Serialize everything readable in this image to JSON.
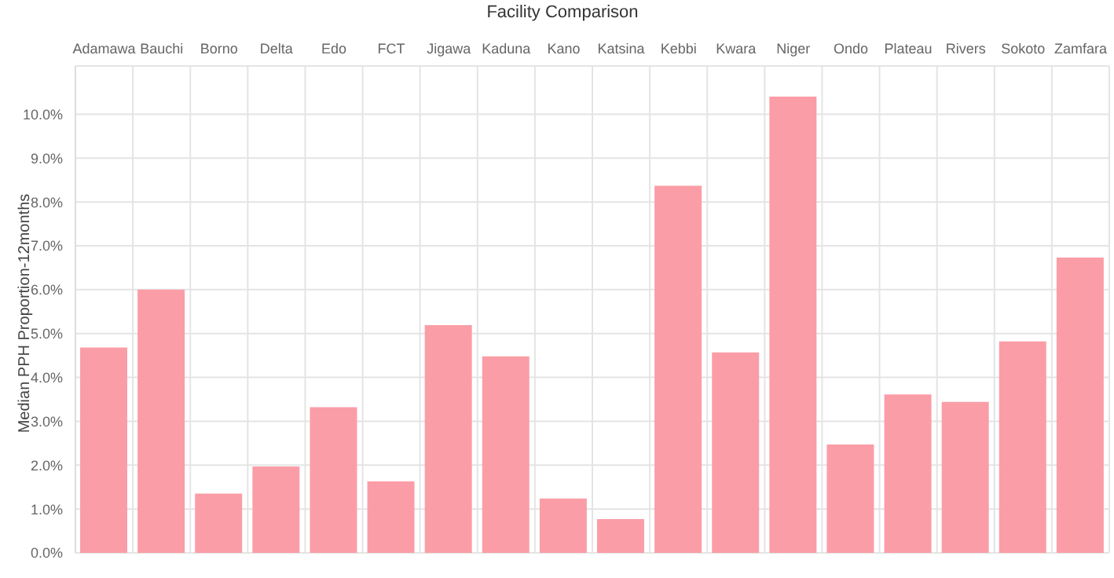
{
  "chart_data": {
    "type": "bar",
    "title": "Facility Comparison",
    "ylabel": "Median PPH Proportion-12months",
    "categories": [
      "Adamawa",
      "Bauchi",
      "Borno",
      "Delta",
      "Edo",
      "FCT",
      "Jigawa",
      "Kaduna",
      "Kano",
      "Katsina",
      "Kebbi",
      "Kwara",
      "Niger",
      "Ondo",
      "Plateau",
      "Rivers",
      "Sokoto",
      "Zamfara"
    ],
    "values": [
      4.68,
      6.0,
      1.35,
      1.97,
      3.32,
      1.63,
      5.19,
      4.48,
      1.24,
      0.77,
      8.37,
      4.57,
      10.4,
      2.47,
      3.61,
      3.44,
      4.82,
      6.73
    ],
    "color": "#fb9da7",
    "ylim": [
      0,
      11.1
    ],
    "yticks": [
      {
        "value": 0,
        "label": "0.0%"
      },
      {
        "value": 1,
        "label": "1.0%"
      },
      {
        "value": 2,
        "label": "2.0%"
      },
      {
        "value": 3,
        "label": "3.0%"
      },
      {
        "value": 4,
        "label": "4.0%"
      },
      {
        "value": 5,
        "label": "5.0%"
      },
      {
        "value": 6,
        "label": "6.0%"
      },
      {
        "value": 7,
        "label": "7.0%"
      },
      {
        "value": 8,
        "label": "8.0%"
      },
      {
        "value": 9,
        "label": "9.0%"
      },
      {
        "value": 10,
        "label": "10.0%"
      }
    ],
    "grid": true
  }
}
